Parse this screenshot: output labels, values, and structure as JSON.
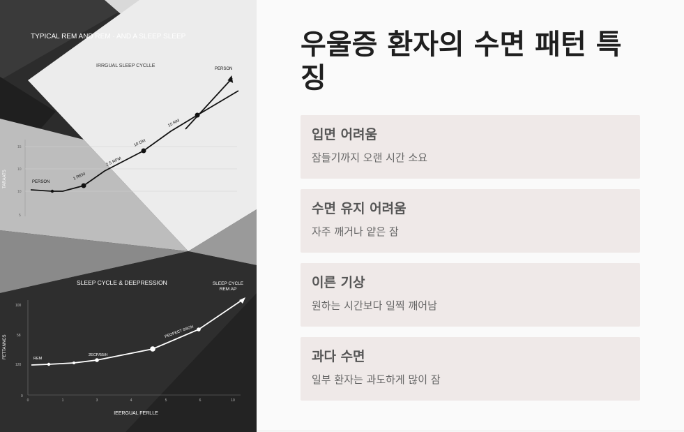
{
  "image": {
    "top_title": "TYPICAL REM AND REM · AND A SLEEP SLEEP",
    "top_subtitle": "IRRGUAL SLEEP CYCLLE",
    "top_ylabel": "TARAATS",
    "top_yticks": [
      "15",
      "10",
      "10",
      "5"
    ],
    "top_labels": {
      "person_start": "PERSON",
      "person_end": "PERSON",
      "p1": "1 REM",
      "p2": "2.5 RPM",
      "p3": "10 DM",
      "p4": "15 RM"
    },
    "bottom_title": "SLEEP CYCLE & DEEPRESSION",
    "bottom_corner_line1": "SLEEP CYCLE",
    "bottom_corner_line2": "REM AP",
    "bottom_ylabel": "FETTANNCS",
    "bottom_yticks": [
      "100",
      "58",
      "120",
      "0"
    ],
    "bottom_xticks": [
      "0",
      "1",
      "3",
      "4",
      "5",
      "6",
      "10"
    ],
    "bottom_xlabel": "IEERGUAL FERLLE",
    "bottom_labels": {
      "start": "REM",
      "mid": "2ECP/55/H",
      "upper": "PEOPECT SSON"
    }
  },
  "content": {
    "title": "우울증 환자의 수면 패턴 특징",
    "cards": [
      {
        "title": "입면 어려움",
        "desc": "잠들기까지 오랜 시간 소요"
      },
      {
        "title": "수면 유지 어려움",
        "desc": "자주 깨거나 얕은 잠"
      },
      {
        "title": "이른 기상",
        "desc": "원하는 시간보다 일찍 깨어남"
      },
      {
        "title": "과다 수면",
        "desc": "일부 환자는 과도하게 많이 잠"
      }
    ]
  }
}
